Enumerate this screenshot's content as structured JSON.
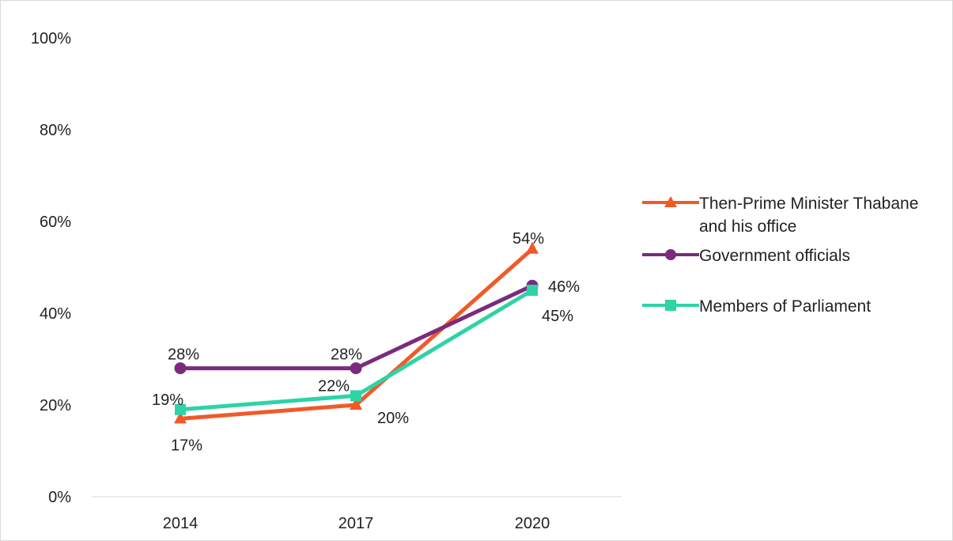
{
  "chart_data": {
    "type": "line",
    "categories": [
      "2014",
      "2017",
      "2020"
    ],
    "ylim": [
      0,
      100
    ],
    "yticks": [
      0,
      20,
      40,
      60,
      80,
      100
    ],
    "ytick_labels": [
      "0%",
      "20%",
      "40%",
      "60%",
      "80%",
      "100%"
    ],
    "grid": false,
    "legend_position": "right",
    "series": [
      {
        "name": "Then-Prime Minister Thabane and his office",
        "values": [
          17,
          20,
          54
        ],
        "labels": [
          "17%",
          "20%",
          "54%"
        ],
        "color": "#f05a28",
        "marker": "triangle"
      },
      {
        "name": "Government officials",
        "values": [
          28,
          28,
          46
        ],
        "labels": [
          "28%",
          "28%",
          "46%"
        ],
        "color": "#7b2b7e",
        "marker": "circle"
      },
      {
        "name": "Members of Parliament",
        "values": [
          19,
          22,
          45
        ],
        "labels": [
          "19%",
          "22%",
          "45%"
        ],
        "color": "#2ed3a6",
        "marker": "square"
      }
    ]
  }
}
